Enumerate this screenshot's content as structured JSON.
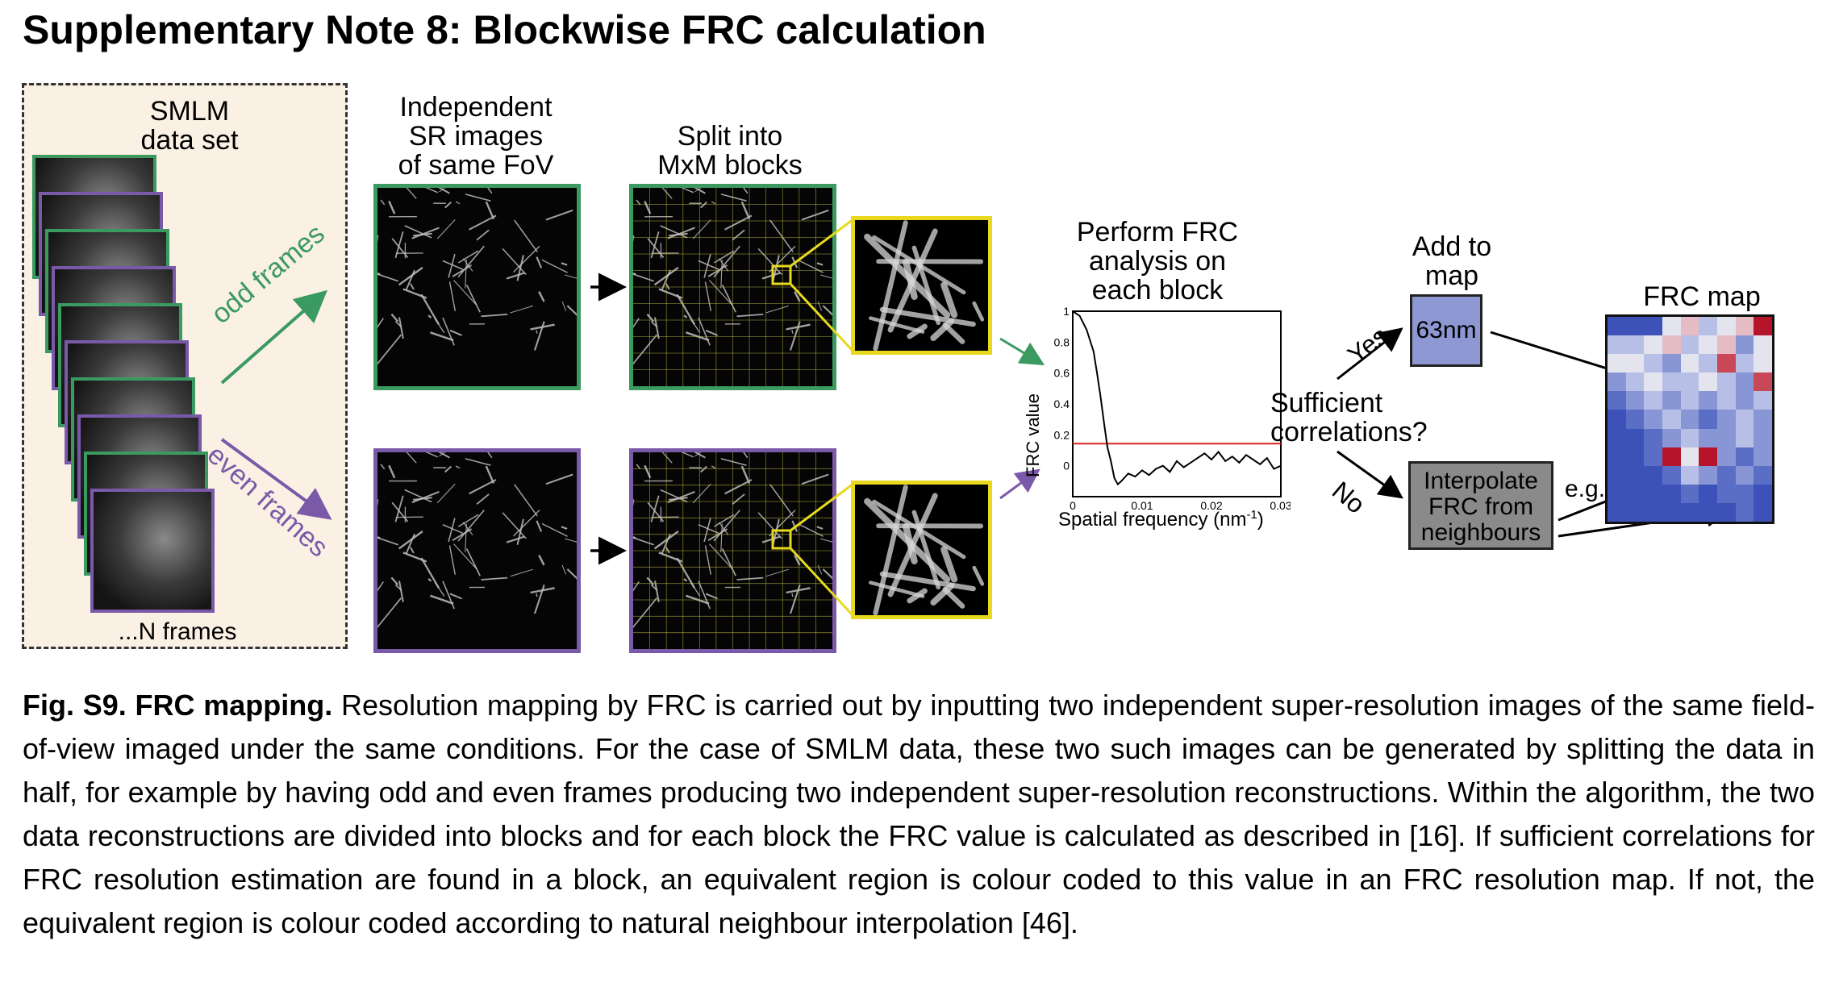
{
  "heading": "Supplementary Note 8: Blockwise FRC calculation",
  "figure": {
    "smlm_label_1": "SMLM",
    "smlm_label_2": "data set",
    "n_frames": "...N frames",
    "odd_frames": "odd frames",
    "even_frames": "even frames",
    "independent_1": "Independent",
    "independent_2": "SR images",
    "independent_3": "of same FoV",
    "split_1": "Split into",
    "split_2": "MxM blocks",
    "perform_1": "Perform FRC",
    "perform_2": "analysis on",
    "perform_3": "each block",
    "sufficient_1": "Sufficient",
    "sufficient_2": "correlations?",
    "yes": "Yes",
    "no": "No",
    "add_1": "Add to",
    "add_2": "map",
    "value_box": "63nm",
    "interp_1": "Interpolate",
    "interp_2": "FRC from",
    "interp_3": "neighbours",
    "eg": "e.g.",
    "frc_map": "FRC map",
    "colors": {
      "green": "#3a9a60",
      "purple": "#7a5aa8",
      "yellow": "#e8d81e",
      "threshold": "#e02020"
    }
  },
  "chart_data": {
    "type": "line",
    "title": "",
    "xlabel": "Spatial frequency (nm",
    "xlabel_sup": "-1",
    "xlabel_end": ")",
    "ylabel": "FRC value",
    "xlim": [
      0,
      0.03
    ],
    "ylim": [
      -0.2,
      1.0
    ],
    "xticks": [
      "0",
      "0.01",
      "0.02",
      "0.03"
    ],
    "yticks": [
      "0",
      "0.2",
      "0.4",
      "0.6",
      "0.8",
      "1"
    ],
    "threshold": 0.143,
    "series": [
      {
        "x": [
          0,
          0.001,
          0.002,
          0.003,
          0.0035,
          0.004,
          0.0045,
          0.005,
          0.0055,
          0.006,
          0.0065,
          0.007,
          0.008,
          0.009,
          0.01,
          0.011,
          0.012,
          0.013,
          0.014,
          0.015,
          0.016,
          0.017,
          0.018,
          0.019,
          0.02,
          0.021,
          0.022,
          0.023,
          0.024,
          0.025,
          0.026,
          0.027,
          0.028,
          0.029,
          0.03
        ],
        "y": [
          1.0,
          0.97,
          0.88,
          0.74,
          0.6,
          0.45,
          0.28,
          0.12,
          0.03,
          -0.08,
          -0.12,
          -0.1,
          -0.05,
          -0.07,
          -0.03,
          -0.06,
          -0.02,
          0.0,
          -0.04,
          0.03,
          -0.01,
          0.02,
          0.05,
          0.08,
          0.04,
          0.09,
          0.03,
          0.06,
          0.02,
          0.07,
          0.04,
          0.01,
          0.05,
          -0.02,
          0.0
        ]
      }
    ]
  },
  "caption": {
    "label": "Fig. S9. FRC mapping.",
    "text": "Resolution mapping by FRC is carried out by inputting two independent super-resolution images of the same field-of-view imaged under the same conditions. For the case of SMLM data, these two such images can be generated by splitting the data in half, for example by having odd and even frames producing two independent super-resolution reconstructions. Within the algorithm, the two data reconstructions are divided into blocks and for each block the FRC value is calculated as described in [16]. If sufficient correlations for FRC resolution estimation are found in a block, an equivalent region is colour coded to this value in an FRC resolution map. If not, the equivalent region is colour coded according to natural neighbour interpolation [46]."
  }
}
